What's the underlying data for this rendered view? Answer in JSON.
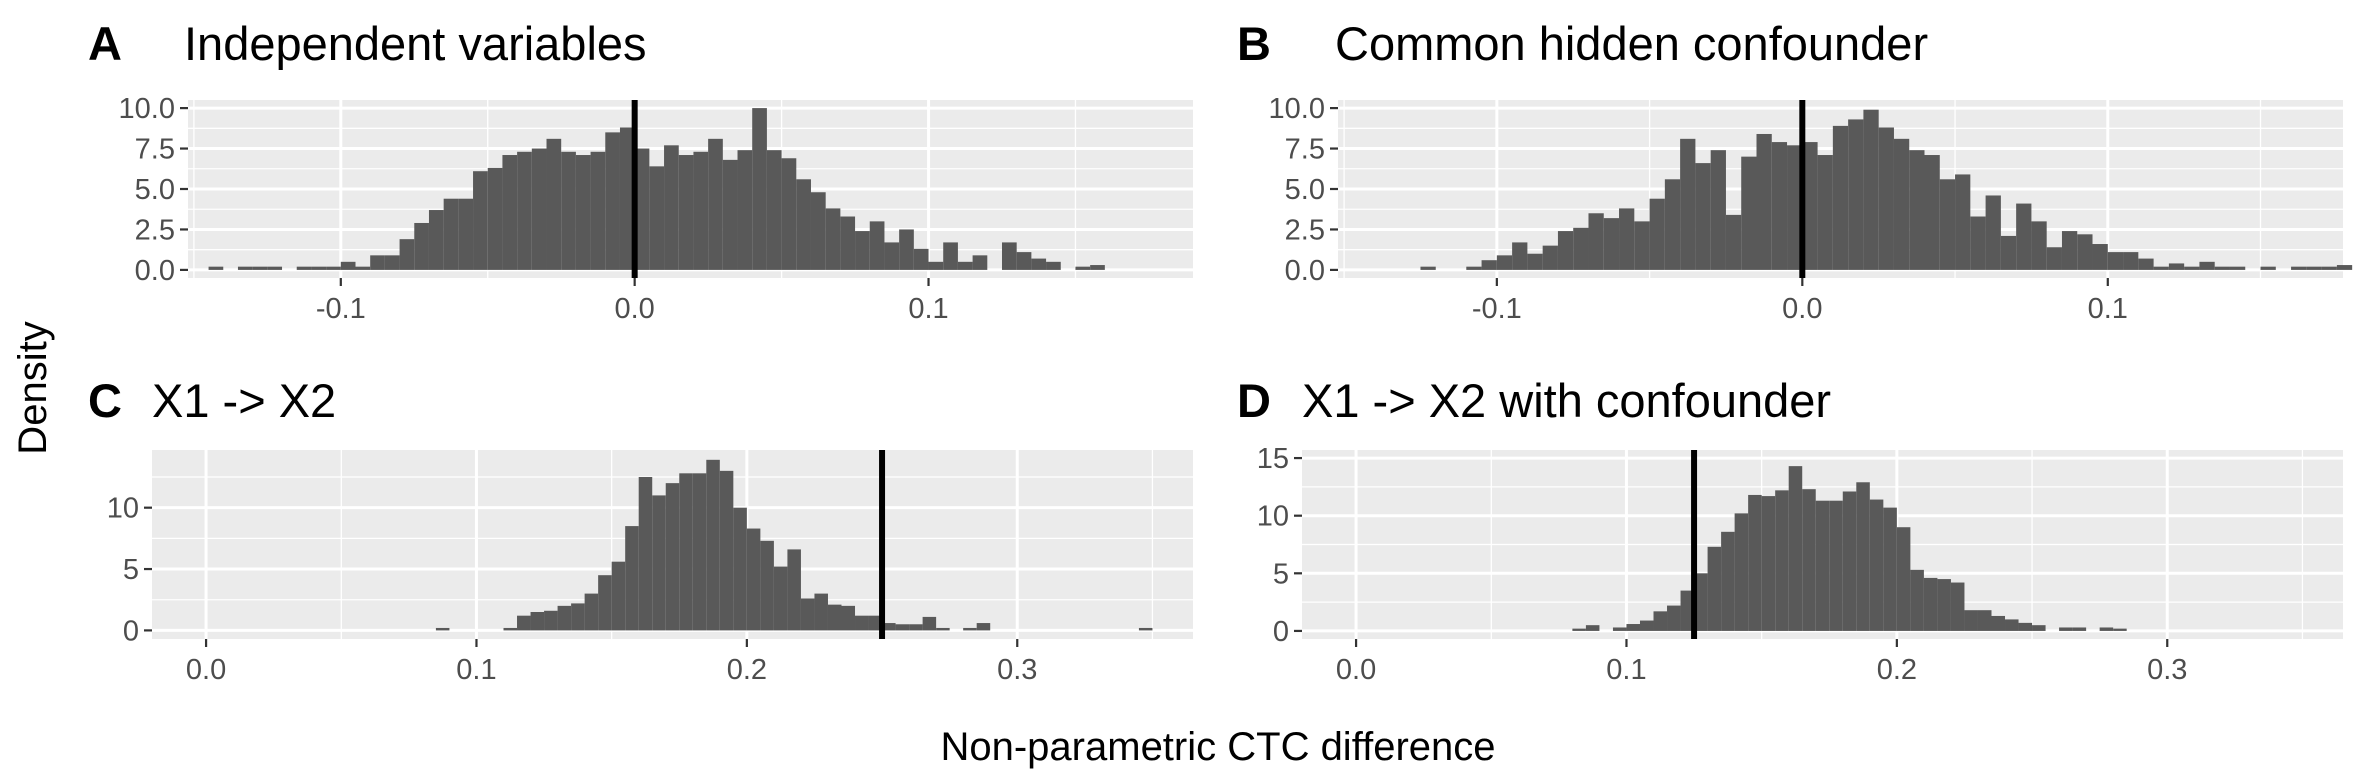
{
  "figure": {
    "ylabel": "Density",
    "xlabel": "Non-parametric CTC difference"
  },
  "chart_data": [
    {
      "tag": "A",
      "title": "Independent variables",
      "type": "bar",
      "xlim": [
        -0.152,
        0.19
      ],
      "ylim": [
        -0.5,
        10.5
      ],
      "xticks": [
        -0.1,
        0.0,
        0.1
      ],
      "xtick_labels": [
        "-0.1",
        "0.0",
        "0.1"
      ],
      "yticks": [
        0,
        2.5,
        5,
        7.5,
        10
      ],
      "ytick_labels": [
        "0.0",
        "2.5",
        "5.0",
        "7.5",
        "10.0"
      ],
      "binwidth": 0.005,
      "bin_start": -0.145,
      "values": [
        0.2,
        0,
        0.2,
        0.2,
        0.2,
        0,
        0.2,
        0.2,
        0.2,
        0.5,
        0.2,
        0.9,
        0.9,
        1.9,
        2.9,
        3.7,
        4.4,
        4.4,
        6.1,
        6.3,
        7.1,
        7.3,
        7.5,
        8.1,
        7.3,
        7.1,
        7.3,
        8.5,
        8.8,
        7.5,
        6.4,
        7.7,
        7.1,
        7.3,
        8.1,
        6.8,
        7.4,
        10.0,
        7.4,
        6.9,
        5.6,
        4.8,
        3.8,
        3.3,
        2.4,
        3.0,
        1.7,
        2.5,
        1.3,
        0.5,
        1.7,
        0.5,
        0.9,
        0,
        1.7,
        1.1,
        0.7,
        0.5,
        0,
        0.2,
        0.3
      ],
      "vline": 0.0
    },
    {
      "tag": "B",
      "title": "Common hidden confounder",
      "type": "bar",
      "xlim": [
        -0.152,
        0.177
      ],
      "ylim": [
        -0.5,
        10.5
      ],
      "xticks": [
        -0.1,
        0.0,
        0.1
      ],
      "xtick_labels": [
        "-0.1",
        "0.0",
        "0.1"
      ],
      "yticks": [
        0,
        2.5,
        5,
        7.5,
        10
      ],
      "ytick_labels": [
        "0.0",
        "2.5",
        "5.0",
        "7.5",
        "10.0"
      ],
      "binwidth": 0.005,
      "bin_start": -0.125,
      "values": [
        0.2,
        0,
        0,
        0.2,
        0.6,
        0.9,
        1.7,
        1.0,
        1.5,
        2.4,
        2.6,
        3.5,
        3.2,
        3.8,
        3.0,
        4.4,
        5.6,
        8.1,
        6.6,
        7.4,
        3.4,
        7.0,
        8.4,
        7.9,
        7.7,
        7.9,
        7.1,
        8.9,
        9.3,
        9.9,
        8.8,
        8.1,
        7.4,
        7.1,
        5.6,
        5.9,
        3.3,
        4.6,
        2.1,
        4.1,
        3.0,
        1.4,
        2.4,
        2.2,
        1.6,
        1.1,
        1.1,
        0.7,
        0.2,
        0.4,
        0.2,
        0.5,
        0.2,
        0.2,
        0,
        0.2,
        0,
        0.2,
        0.2,
        0.2,
        0.3
      ],
      "vline": 0.0
    },
    {
      "tag": "C",
      "title": "X1 -> X2",
      "type": "bar",
      "xlim": [
        -0.02,
        0.365
      ],
      "ylim": [
        -0.7,
        14.7
      ],
      "xticks": [
        0.0,
        0.1,
        0.2,
        0.3
      ],
      "xtick_labels": [
        "0.0",
        "0.1",
        "0.2",
        "0.3"
      ],
      "yticks": [
        0,
        5,
        10
      ],
      "ytick_labels": [
        "0",
        "5",
        "10"
      ],
      "binwidth": 0.005,
      "bin_start": 0.085,
      "values": [
        0.2,
        0,
        0,
        0,
        0,
        0.2,
        1.2,
        1.5,
        1.6,
        2.0,
        2.2,
        3.0,
        4.5,
        5.6,
        8.5,
        12.5,
        11.0,
        12.0,
        12.8,
        12.8,
        13.9,
        13.0,
        10.0,
        8.3,
        7.3,
        5.2,
        6.6,
        2.6,
        3.0,
        2.1,
        2.0,
        1.2,
        1.2,
        0.6,
        0.5,
        0.5,
        1.1,
        0.2,
        0,
        0.2,
        0.6,
        0,
        0,
        0,
        0,
        0,
        0,
        0,
        0,
        0,
        0,
        0,
        0.2
      ],
      "vline": 0.25
    },
    {
      "tag": "D",
      "title": "X1 -> X2 with confounder",
      "type": "bar",
      "xlim": [
        -0.02,
        0.365
      ],
      "ylim": [
        -0.7,
        15.7
      ],
      "xticks": [
        0.0,
        0.1,
        0.2,
        0.3
      ],
      "xtick_labels": [
        "0.0",
        "0.1",
        "0.2",
        "0.3"
      ],
      "yticks": [
        0,
        5,
        10,
        15
      ],
      "ytick_labels": [
        "0",
        "5",
        "10",
        "15"
      ],
      "binwidth": 0.005,
      "bin_start": 0.08,
      "values": [
        0.2,
        0.5,
        0,
        0.3,
        0.6,
        0.9,
        1.7,
        2.2,
        3.5,
        5.0,
        7.3,
        8.6,
        10.2,
        11.8,
        11.7,
        12.2,
        14.3,
        12.3,
        11.3,
        11.3,
        12.1,
        12.9,
        11.4,
        10.7,
        9.0,
        5.3,
        4.6,
        4.5,
        4.2,
        1.8,
        1.8,
        1.3,
        1.0,
        0.7,
        0.5,
        0,
        0.3,
        0.3,
        0,
        0.3,
        0.2
      ],
      "vline": 0.125
    }
  ]
}
